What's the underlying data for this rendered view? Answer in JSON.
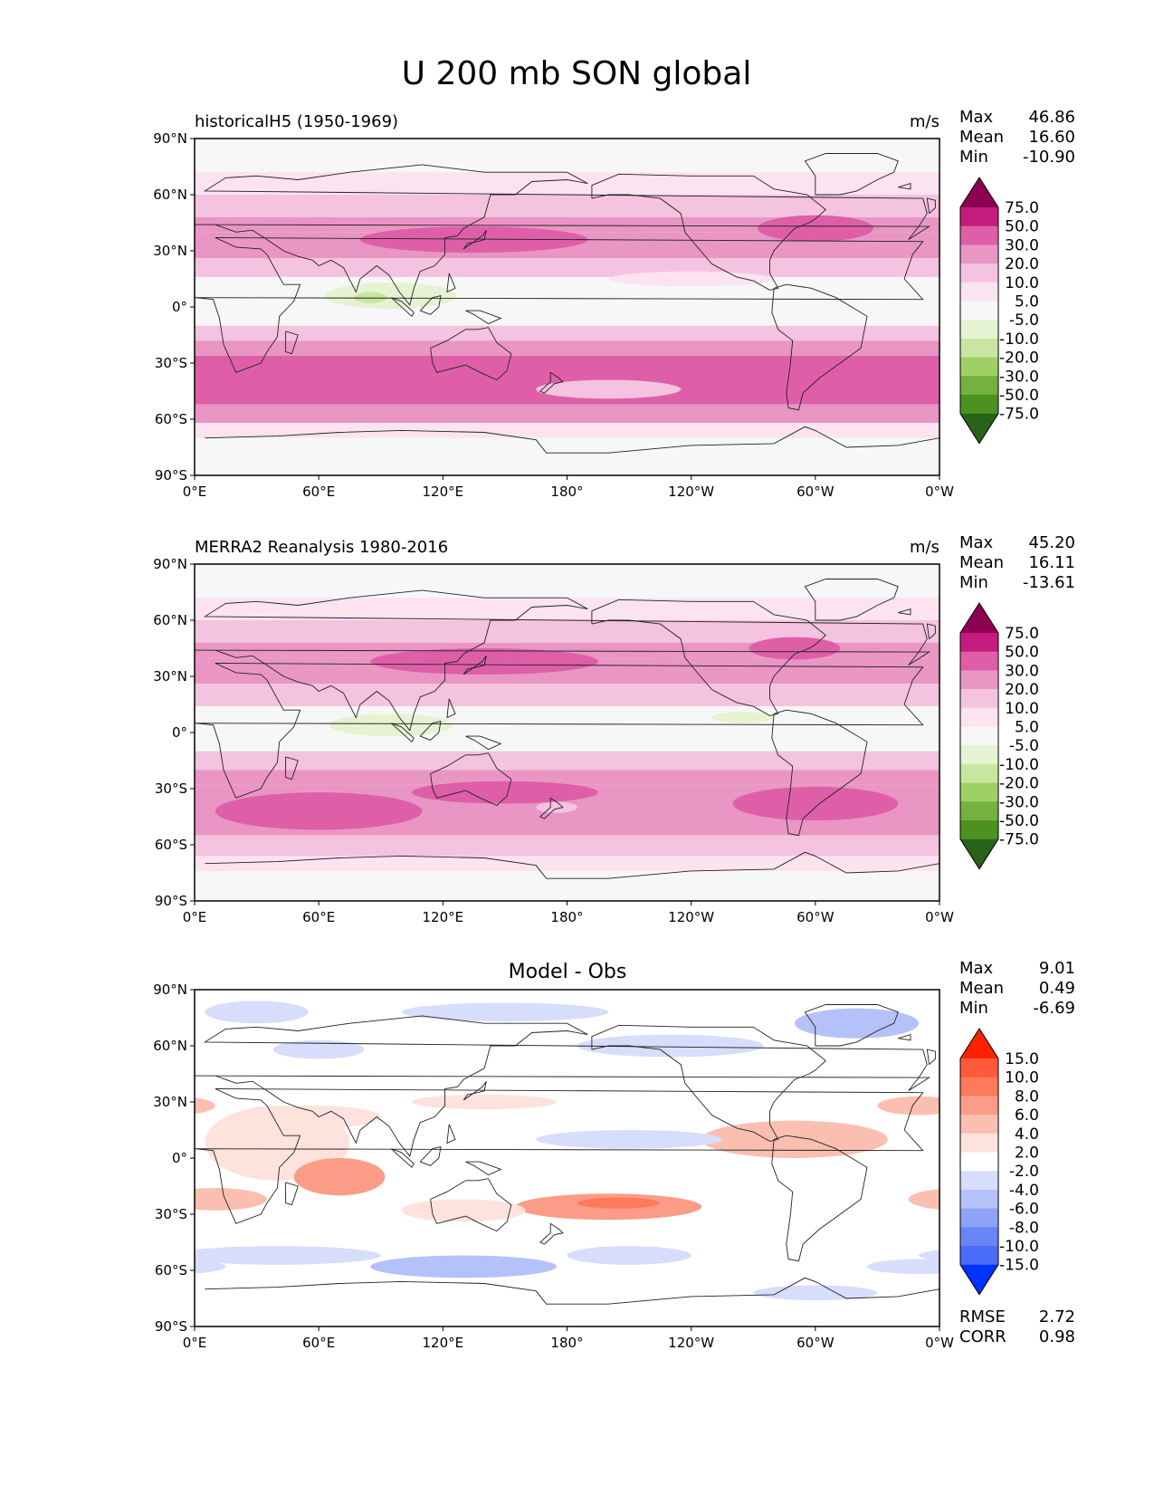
{
  "chart_data": {
    "type": "contour-map",
    "suptitle": "U 200 mb SON global",
    "lon_ticks": [
      "0°E",
      "60°E",
      "120°E",
      "180°",
      "120°W",
      "60°W",
      "0°W"
    ],
    "lat_ticks": [
      "90°N",
      "60°N",
      "30°N",
      "0°",
      "30°S",
      "60°S",
      "90°S"
    ],
    "panels": [
      {
        "name": "test",
        "left_title": "historicalH5 (1950-1969)",
        "center_title": "",
        "units": "m/s",
        "stats": {
          "labels": [
            "Max",
            "Mean",
            "Min"
          ],
          "values": [
            "46.86",
            "16.60",
            "-10.90"
          ]
        },
        "colorbar": {
          "levels": [
            "75.0",
            "50.0",
            "30.0",
            "20.0",
            "10.0",
            "5.0",
            "-5.0",
            "-10.0",
            "-20.0",
            "-30.0",
            "-50.0",
            "-75.0"
          ],
          "colors": [
            "#8e0152",
            "#c51b7d",
            "#de5fa8",
            "#e996c4",
            "#f4c3df",
            "#fbe3f0",
            "#f7f7f7",
            "#e6f3d3",
            "#c7e7a0",
            "#9fd066",
            "#74b13f",
            "#4d9221",
            "#276419"
          ]
        },
        "bands": [
          {
            "lat_from": 90,
            "lat_to": 72,
            "value": 3
          },
          {
            "lat_from": 72,
            "lat_to": 60,
            "value": 8
          },
          {
            "lat_from": 60,
            "lat_to": 48,
            "value": 14
          },
          {
            "lat_from": 48,
            "lat_to": 40,
            "value": 22
          },
          {
            "lat_from": 40,
            "lat_to": 26,
            "value": 28
          },
          {
            "lat_from": 26,
            "lat_to": 16,
            "value": 12
          },
          {
            "lat_from": 16,
            "lat_to": -10,
            "value": 2
          },
          {
            "lat_from": -10,
            "lat_to": -18,
            "value": 10
          },
          {
            "lat_from": -18,
            "lat_to": -26,
            "value": 24
          },
          {
            "lat_from": -26,
            "lat_to": -52,
            "value": 35
          },
          {
            "lat_from": -52,
            "lat_to": -62,
            "value": 22
          },
          {
            "lat_from": -62,
            "lat_to": -70,
            "value": 8
          },
          {
            "lat_from": -70,
            "lat_to": -90,
            "value": 2
          }
        ],
        "blobs": [
          {
            "lon": 135,
            "lat": 36,
            "dlon": 55,
            "dlat": 7,
            "value": 38
          },
          {
            "lon": 300,
            "lat": 42,
            "dlon": 28,
            "dlat": 7,
            "value": 32
          },
          {
            "lon": 95,
            "lat": 6,
            "dlon": 32,
            "dlat": 7,
            "value": -6
          },
          {
            "lon": 85,
            "lat": 5,
            "dlon": 8,
            "dlat": 3,
            "value": -12
          },
          {
            "lon": 200,
            "lat": -44,
            "dlon": 35,
            "dlat": 5,
            "value": 15
          },
          {
            "lon": 240,
            "lat": 15,
            "dlon": 40,
            "dlat": 4,
            "value": 8
          }
        ]
      },
      {
        "name": "reference",
        "left_title": "MERRA2 Reanalysis 1980-2016",
        "center_title": "",
        "units": "m/s",
        "stats": {
          "labels": [
            "Max",
            "Mean",
            "Min"
          ],
          "values": [
            "45.20",
            "16.11",
            "-13.61"
          ]
        },
        "colorbar": {
          "levels": [
            "75.0",
            "50.0",
            "30.0",
            "20.0",
            "10.0",
            "5.0",
            "-5.0",
            "-10.0",
            "-20.0",
            "-30.0",
            "-50.0",
            "-75.0"
          ],
          "colors": [
            "#8e0152",
            "#c51b7d",
            "#de5fa8",
            "#e996c4",
            "#f4c3df",
            "#fbe3f0",
            "#f7f7f7",
            "#e6f3d3",
            "#c7e7a0",
            "#9fd066",
            "#74b13f",
            "#4d9221",
            "#276419"
          ]
        },
        "bands": [
          {
            "lat_from": 90,
            "lat_to": 72,
            "value": 4
          },
          {
            "lat_from": 72,
            "lat_to": 60,
            "value": 9
          },
          {
            "lat_from": 60,
            "lat_to": 48,
            "value": 15
          },
          {
            "lat_from": 48,
            "lat_to": 40,
            "value": 22
          },
          {
            "lat_from": 40,
            "lat_to": 26,
            "value": 25
          },
          {
            "lat_from": 26,
            "lat_to": 14,
            "value": 12
          },
          {
            "lat_from": 14,
            "lat_to": -10,
            "value": 2
          },
          {
            "lat_from": -10,
            "lat_to": -20,
            "value": 11
          },
          {
            "lat_from": -20,
            "lat_to": -28,
            "value": 22
          },
          {
            "lat_from": -28,
            "lat_to": -55,
            "value": 26
          },
          {
            "lat_from": -55,
            "lat_to": -66,
            "value": 16
          },
          {
            "lat_from": -66,
            "lat_to": -74,
            "value": 7
          },
          {
            "lat_from": -74,
            "lat_to": -90,
            "value": 2
          }
        ],
        "blobs": [
          {
            "lon": 140,
            "lat": 38,
            "dlon": 55,
            "dlat": 7,
            "value": 35
          },
          {
            "lon": 60,
            "lat": -42,
            "dlon": 50,
            "dlat": 10,
            "value": 35
          },
          {
            "lon": 150,
            "lat": -32,
            "dlon": 45,
            "dlat": 6,
            "value": 34
          },
          {
            "lon": 300,
            "lat": -38,
            "dlon": 40,
            "dlat": 9,
            "value": 34
          },
          {
            "lon": 290,
            "lat": 45,
            "dlon": 22,
            "dlat": 6,
            "value": 34
          },
          {
            "lon": 95,
            "lat": 4,
            "dlon": 30,
            "dlat": 6,
            "value": -8
          },
          {
            "lon": 265,
            "lat": 8,
            "dlon": 15,
            "dlat": 3,
            "value": -6
          },
          {
            "lon": 175,
            "lat": -40,
            "dlon": 10,
            "dlat": 3,
            "value": 12
          }
        ]
      },
      {
        "name": "diff",
        "left_title": "",
        "center_title": "Model - Obs",
        "units": "",
        "stats": {
          "labels": [
            "Max",
            "Mean",
            "Min"
          ],
          "values": [
            "9.01",
            "0.49",
            "-6.69"
          ]
        },
        "extra_stats": {
          "labels": [
            "RMSE",
            "CORR"
          ],
          "values": [
            "2.72",
            "0.98"
          ]
        },
        "colorbar": {
          "levels": [
            "15.0",
            "10.0",
            "8.0",
            "6.0",
            "4.0",
            "2.0",
            "-2.0",
            "-4.0",
            "-6.0",
            "-8.0",
            "-10.0",
            "-15.0"
          ],
          "colors": [
            "#ff2200",
            "#ff5a3a",
            "#ff7a5c",
            "#fb9c87",
            "#fbbfb2",
            "#fde3dc",
            "#ffffff",
            "#d7defb",
            "#b4c2f9",
            "#8ea3f7",
            "#6a86f6",
            "#4a6cf8",
            "#0033ff"
          ]
        },
        "bands": [
          {
            "lat_from": 90,
            "lat_to": -90,
            "value": 0
          }
        ],
        "blobs": [
          {
            "lon": 30,
            "lat": 78,
            "dlon": 25,
            "dlat": 6,
            "value": -3
          },
          {
            "lon": 150,
            "lat": 78,
            "dlon": 50,
            "dlat": 5,
            "value": -3
          },
          {
            "lon": 230,
            "lat": 60,
            "dlon": 45,
            "dlat": 6,
            "value": -3
          },
          {
            "lon": 320,
            "lat": 72,
            "dlon": 30,
            "dlat": 8,
            "value": -5
          },
          {
            "lon": 60,
            "lat": 58,
            "dlon": 22,
            "dlat": 5,
            "value": -3
          },
          {
            "lon": 40,
            "lat": 8,
            "dlon": 35,
            "dlat": 20,
            "value": 3
          },
          {
            "lon": 70,
            "lat": -10,
            "dlon": 22,
            "dlat": 10,
            "value": 6
          },
          {
            "lon": 60,
            "lat": 22,
            "dlon": 30,
            "dlat": 6,
            "value": 3
          },
          {
            "lon": 10,
            "lat": -22,
            "dlon": 25,
            "dlat": 6,
            "value": 5
          },
          {
            "lon": 140,
            "lat": 30,
            "dlon": 35,
            "dlat": 4,
            "value": 3
          },
          {
            "lon": 200,
            "lat": -26,
            "dlon": 45,
            "dlat": 7,
            "value": 6
          },
          {
            "lon": 205,
            "lat": -24,
            "dlon": 20,
            "dlat": 3,
            "value": 9
          },
          {
            "lon": 290,
            "lat": 10,
            "dlon": 45,
            "dlat": 10,
            "value": 4
          },
          {
            "lon": 350,
            "lat": 28,
            "dlon": 20,
            "dlat": 5,
            "value": 4
          },
          {
            "lon": 130,
            "lat": -28,
            "dlon": 30,
            "dlat": 6,
            "value": 3
          },
          {
            "lon": 210,
            "lat": 10,
            "dlon": 45,
            "dlat": 5,
            "value": -3
          },
          {
            "lon": 40,
            "lat": -52,
            "dlon": 50,
            "dlat": 5,
            "value": -4
          },
          {
            "lon": 130,
            "lat": -58,
            "dlon": 45,
            "dlat": 6,
            "value": -5
          },
          {
            "lon": 210,
            "lat": -52,
            "dlon": 30,
            "dlat": 5,
            "value": -2.5
          },
          {
            "lon": 300,
            "lat": -72,
            "dlon": 30,
            "dlat": 4,
            "value": -3
          },
          {
            "lon": 350,
            "lat": -58,
            "dlon": 25,
            "dlat": 4,
            "value": -3
          }
        ]
      }
    ]
  }
}
